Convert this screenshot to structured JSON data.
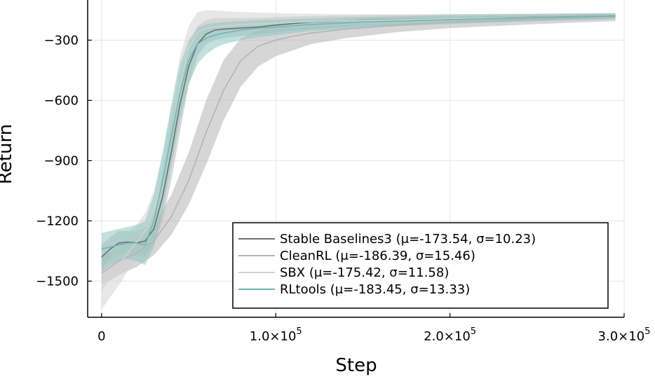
{
  "chart_data": {
    "type": "line",
    "xlabel": "Step",
    "ylabel": "Return",
    "xlim": [
      -8000,
      300000
    ],
    "ylim": [
      -1680,
      -100
    ],
    "grid": true,
    "legend_placement": "bottom-right",
    "x_ticks": [
      {
        "value": 0,
        "label": "0",
        "sup": ""
      },
      {
        "value": 100000,
        "label": "1.0×10",
        "sup": "5"
      },
      {
        "value": 200000,
        "label": "2.0×10",
        "sup": "5"
      },
      {
        "value": 300000,
        "label": "3.0×10",
        "sup": "5"
      }
    ],
    "y_ticks": [
      {
        "value": -300,
        "label": "−300"
      },
      {
        "value": -600,
        "label": "−600"
      },
      {
        "value": -900,
        "label": "−900"
      },
      {
        "value": -1200,
        "label": "−1200"
      },
      {
        "value": -1500,
        "label": "−1500"
      }
    ],
    "series": [
      {
        "name": "Stable Baselines3 (μ=-173.54, σ=10.23)",
        "color": "#6e6e6e",
        "band_color": "#a8a8a8",
        "band_opacity": 0.45,
        "x": [
          0,
          5000,
          10000,
          15000,
          20000,
          25000,
          30000,
          35000,
          40000,
          45000,
          50000,
          55000,
          60000,
          65000,
          70000,
          80000,
          90000,
          100000,
          120000,
          150000,
          200000,
          250000,
          295000
        ],
        "mean": [
          -1380,
          -1340,
          -1310,
          -1305,
          -1310,
          -1300,
          -1240,
          -1080,
          -860,
          -620,
          -430,
          -320,
          -270,
          -250,
          -245,
          -240,
          -235,
          -225,
          -210,
          -200,
          -192,
          -185,
          -180
        ],
        "lower": [
          -1430,
          -1400,
          -1370,
          -1360,
          -1380,
          -1370,
          -1320,
          -1200,
          -1000,
          -760,
          -520,
          -380,
          -320,
          -300,
          -290,
          -280,
          -270,
          -260,
          -245,
          -230,
          -215,
          -205,
          -195
        ],
        "upper": [
          -1320,
          -1280,
          -1250,
          -1250,
          -1250,
          -1230,
          -1150,
          -960,
          -700,
          -470,
          -330,
          -230,
          -200,
          -190,
          -190,
          -190,
          -190,
          -185,
          -180,
          -175,
          -170,
          -168,
          -165
        ]
      },
      {
        "name": "CleanRL (μ=-186.39, σ=15.46)",
        "color": "#b4b4b4",
        "band_color": "#b4b4b4",
        "band_opacity": 0.55,
        "x": [
          0,
          10000,
          20000,
          30000,
          40000,
          50000,
          60000,
          70000,
          80000,
          90000,
          100000,
          110000,
          120000,
          140000,
          170000,
          200000,
          250000,
          295000
        ],
        "mean": [
          -1460,
          -1400,
          -1360,
          -1300,
          -1180,
          -1000,
          -760,
          -550,
          -400,
          -330,
          -300,
          -280,
          -265,
          -245,
          -225,
          -210,
          -195,
          -185
        ],
        "lower": [
          -1520,
          -1470,
          -1430,
          -1370,
          -1270,
          -1120,
          -920,
          -700,
          -530,
          -430,
          -380,
          -350,
          -320,
          -290,
          -260,
          -240,
          -220,
          -205
        ],
        "upper": [
          -1380,
          -1330,
          -1290,
          -1220,
          -1070,
          -860,
          -600,
          -400,
          -290,
          -250,
          -230,
          -215,
          -205,
          -195,
          -185,
          -180,
          -175,
          -170
        ]
      },
      {
        "name": "SBX (μ=-175.42, σ=11.58)",
        "color": "#d2d2d2",
        "band_color": "#d4d4d4",
        "band_opacity": 0.55,
        "x": [
          0,
          5000,
          10000,
          15000,
          20000,
          25000,
          30000,
          35000,
          40000,
          45000,
          50000,
          55000,
          60000,
          70000,
          80000,
          100000,
          130000,
          170000,
          200000,
          250000,
          295000
        ],
        "mean": [
          -1540,
          -1480,
          -1420,
          -1360,
          -1310,
          -1250,
          -1150,
          -1000,
          -780,
          -520,
          -340,
          -260,
          -240,
          -230,
          -222,
          -215,
          -205,
          -198,
          -192,
          -186,
          -181
        ],
        "lower": [
          -1640,
          -1580,
          -1520,
          -1450,
          -1400,
          -1340,
          -1250,
          -1110,
          -920,
          -660,
          -450,
          -330,
          -290,
          -270,
          -255,
          -245,
          -230,
          -218,
          -210,
          -200,
          -195
        ],
        "upper": [
          -1440,
          -1380,
          -1320,
          -1260,
          -1220,
          -1160,
          -1050,
          -880,
          -620,
          -380,
          -230,
          -160,
          -150,
          -155,
          -160,
          -165,
          -170,
          -172,
          -172,
          -170,
          -168
        ]
      },
      {
        "name": "RLtools (μ=-183.45, σ=13.33)",
        "color": "#6fb7b1",
        "band_color": "#8fc9c3",
        "band_opacity": 0.55,
        "x": [
          0,
          5000,
          10000,
          15000,
          20000,
          25000,
          30000,
          35000,
          40000,
          45000,
          50000,
          55000,
          60000,
          65000,
          70000,
          80000,
          90000,
          100000,
          120000,
          150000,
          200000,
          250000,
          295000
        ],
        "mean": [
          -1340,
          -1330,
          -1320,
          -1310,
          -1310,
          -1320,
          -1200,
          -1000,
          -780,
          -560,
          -400,
          -320,
          -290,
          -275,
          -265,
          -250,
          -240,
          -235,
          -222,
          -210,
          -198,
          -188,
          -180
        ],
        "lower": [
          -1450,
          -1420,
          -1400,
          -1390,
          -1400,
          -1420,
          -1330,
          -1150,
          -930,
          -700,
          -520,
          -420,
          -370,
          -340,
          -320,
          -300,
          -285,
          -275,
          -255,
          -238,
          -220,
          -205,
          -195
        ],
        "upper": [
          -1260,
          -1250,
          -1240,
          -1230,
          -1220,
          -1200,
          -1070,
          -860,
          -630,
          -420,
          -300,
          -240,
          -220,
          -215,
          -210,
          -205,
          -200,
          -198,
          -192,
          -184,
          -176,
          -170,
          -166
        ]
      }
    ]
  }
}
